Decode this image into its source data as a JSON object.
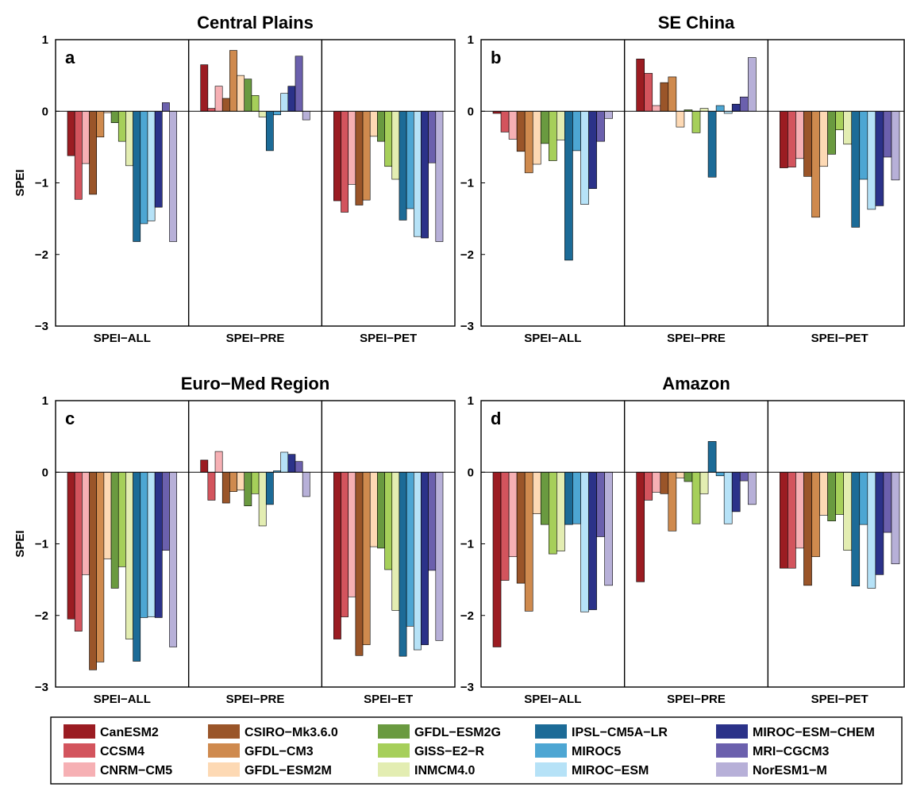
{
  "figure": {
    "legend_models": [
      "CanESM2",
      "CCSM4",
      "CNRM-CM5",
      "CSIRO-Mk3.6.0",
      "GFDL-CM3",
      "GFDL-ESM2M",
      "GFDL-ESM2G",
      "GISS-E2-R",
      "INMCM4.0",
      "IPSL-CM5A-LR",
      "MIROC5",
      "MIROC-ESM",
      "MIROC-ESM-CHEM",
      "MRI-CGCM3",
      "NorESM1-M"
    ],
    "model_colors": [
      "#9b1c22",
      "#d3545d",
      "#f6b0b4",
      "#9a5529",
      "#cf8a4e",
      "#fdd9b4",
      "#6a9a40",
      "#a6cf5a",
      "#e3edb2",
      "#1c6b97",
      "#4da6d3",
      "#b6e2f7",
      "#2b3289",
      "#6b60ad",
      "#b7b0d8"
    ]
  },
  "chart_data": [
    {
      "type": "bar",
      "panel": "a",
      "title": "Central Plains",
      "ylabel": "SPEI",
      "ylim": [
        -3,
        1
      ],
      "yticks": [
        1,
        0,
        -1,
        -2,
        -3
      ],
      "ytick_labels": [
        "1",
        "0",
        "−1",
        "−2",
        "−3"
      ],
      "categories": [
        "SPEI−ALL",
        "SPEI−PRE",
        "SPEI−PET"
      ],
      "values": [
        [
          -0.62,
          -1.23,
          -0.73,
          -1.16,
          -0.36,
          -0.02,
          -0.16,
          -0.42,
          -0.76,
          -1.82,
          -1.57,
          -1.53,
          -1.34,
          0.12,
          -1.82
        ],
        [
          0.65,
          0.04,
          0.35,
          0.18,
          0.85,
          0.5,
          0.45,
          0.22,
          -0.08,
          -0.55,
          -0.05,
          0.25,
          0.35,
          0.77,
          -0.12
        ],
        [
          -1.25,
          -1.41,
          -1.02,
          -1.31,
          -1.24,
          -0.35,
          -0.42,
          -0.77,
          -0.95,
          -1.52,
          -1.36,
          -1.75,
          -1.77,
          -0.72,
          -1.82
        ]
      ]
    },
    {
      "type": "bar",
      "panel": "b",
      "title": "SE China",
      "ylabel": "",
      "ylim": [
        -3,
        1
      ],
      "yticks": [
        1,
        0,
        -1,
        -2,
        -3
      ],
      "ytick_labels": [
        "1",
        "0",
        "−1",
        "−2",
        "−3"
      ],
      "categories": [
        "SPEI−ALL",
        "SPEI−PRE",
        "SPEI−PET"
      ],
      "values": [
        [
          -0.03,
          -0.29,
          -0.39,
          -0.56,
          -0.86,
          -0.74,
          -0.45,
          -0.69,
          -0.4,
          -2.08,
          -0.55,
          -1.3,
          -1.08,
          -0.42,
          -0.1
        ],
        [
          0.73,
          0.53,
          0.08,
          0.4,
          0.48,
          -0.22,
          0.02,
          -0.3,
          0.04,
          -0.92,
          0.08,
          -0.03,
          0.1,
          0.2,
          0.75
        ],
        [
          -0.79,
          -0.78,
          -0.66,
          -0.91,
          -1.48,
          -0.77,
          -0.6,
          -0.26,
          -0.46,
          -1.62,
          -0.95,
          -1.37,
          -1.32,
          -0.64,
          -0.96
        ]
      ]
    },
    {
      "type": "bar",
      "panel": "c",
      "title": "Euro−Med Region",
      "ylabel": "SPEI",
      "ylim": [
        -3,
        1
      ],
      "yticks": [
        1,
        0,
        -1,
        -2,
        -3
      ],
      "ytick_labels": [
        "1",
        "0",
        "−1",
        "−2",
        "−3"
      ],
      "categories": [
        "SPEI−ALL",
        "SPEI−PRE",
        "SPEI−ET"
      ],
      "values": [
        [
          -2.05,
          -2.22,
          -1.43,
          -2.76,
          -2.65,
          -1.21,
          -1.62,
          -1.32,
          -2.33,
          -2.64,
          -2.03,
          -2.02,
          -2.03,
          -1.09,
          -2.44
        ],
        [
          0.17,
          -0.39,
          0.29,
          -0.43,
          -0.27,
          -0.25,
          -0.47,
          -0.3,
          -0.75,
          -0.45,
          0.02,
          0.28,
          0.25,
          0.15,
          -0.34
        ],
        [
          -2.33,
          -2.02,
          -1.74,
          -2.56,
          -2.41,
          -1.04,
          -1.06,
          -1.36,
          -1.93,
          -2.57,
          -2.15,
          -2.48,
          -2.41,
          -1.37,
          -2.35
        ]
      ]
    },
    {
      "type": "bar",
      "panel": "d",
      "title": "Amazon",
      "ylabel": "",
      "ylim": [
        -3,
        1
      ],
      "yticks": [
        1,
        0,
        -1,
        -2,
        -3
      ],
      "ytick_labels": [
        "1",
        "0",
        "−1",
        "−2",
        "−3"
      ],
      "categories": [
        "SPEI−ALL",
        "SPEI−PRE",
        "SPEI−PET"
      ],
      "values": [
        [
          -2.44,
          -1.51,
          -1.18,
          -1.55,
          -1.94,
          -0.58,
          -0.73,
          -1.14,
          -1.1,
          -0.73,
          -0.72,
          -1.95,
          -1.92,
          -0.9,
          -1.58
        ],
        [
          -1.53,
          -0.39,
          -0.28,
          -0.3,
          -0.82,
          -0.08,
          -0.13,
          -0.72,
          -0.3,
          0.43,
          -0.05,
          -0.72,
          -0.55,
          -0.12,
          -0.45
        ],
        [
          -1.34,
          -1.34,
          -1.06,
          -1.58,
          -1.18,
          -0.6,
          -0.68,
          -0.59,
          -1.09,
          -1.59,
          -0.73,
          -1.62,
          -1.43,
          -0.84,
          -1.28
        ]
      ]
    }
  ]
}
